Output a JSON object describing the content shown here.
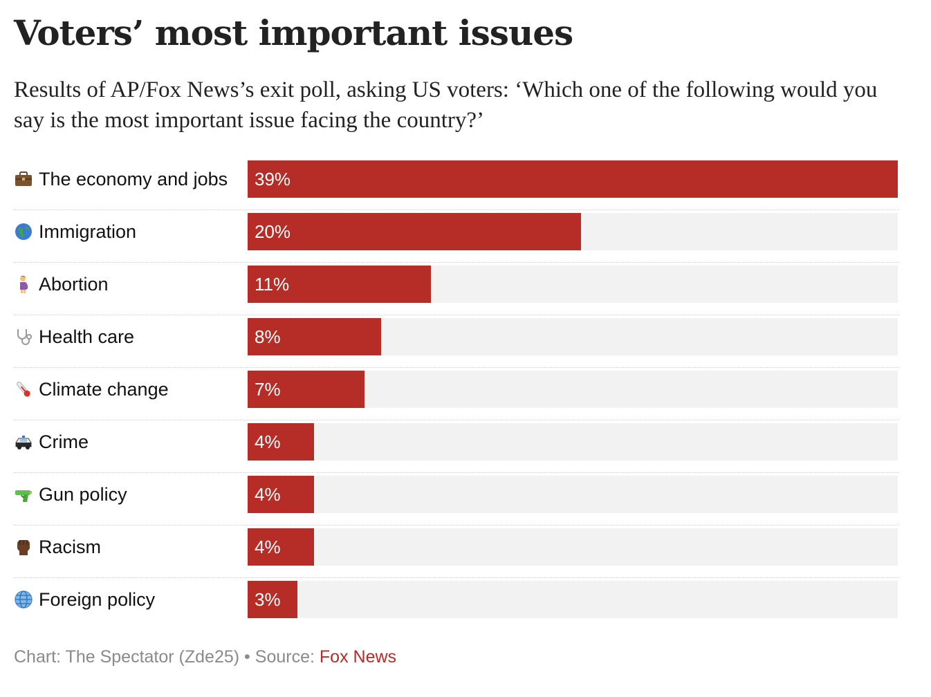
{
  "chart_data": {
    "type": "bar",
    "orientation": "horizontal",
    "title": "Voters’ most important issues",
    "subtitle": "Results of AP/Fox News’s exit poll, asking US voters: ‘Which one of the following would you say is the most important issue facing the country?’",
    "categories": [
      "The economy and jobs",
      "Immigration",
      "Abortion",
      "Health care",
      "Climate change",
      "Crime",
      "Gun policy",
      "Racism",
      "Foreign policy"
    ],
    "icons": [
      "briefcase-icon",
      "globe-icon",
      "pregnant-woman-icon",
      "stethoscope-icon",
      "thermometer-icon",
      "police-car-icon",
      "water-pistol-icon",
      "raised-fist-icon",
      "globe-meridians-icon"
    ],
    "values": [
      39,
      20,
      11,
      8,
      7,
      4,
      4,
      4,
      3
    ],
    "value_labels": [
      "39%",
      "20%",
      "11%",
      "8%",
      "7%",
      "4%",
      "4%",
      "4%",
      "3%"
    ],
    "xlim": [
      0,
      39
    ],
    "bar_color": "#b52d26",
    "track_color": "#f2f2f2",
    "legend": "none",
    "grid": false
  },
  "footer": {
    "credit": "Chart: The Spectator (Zde25)",
    "separator": "•",
    "source_prefix": "Source:",
    "source_name": "Fox News",
    "source_color": "#b52d26"
  }
}
